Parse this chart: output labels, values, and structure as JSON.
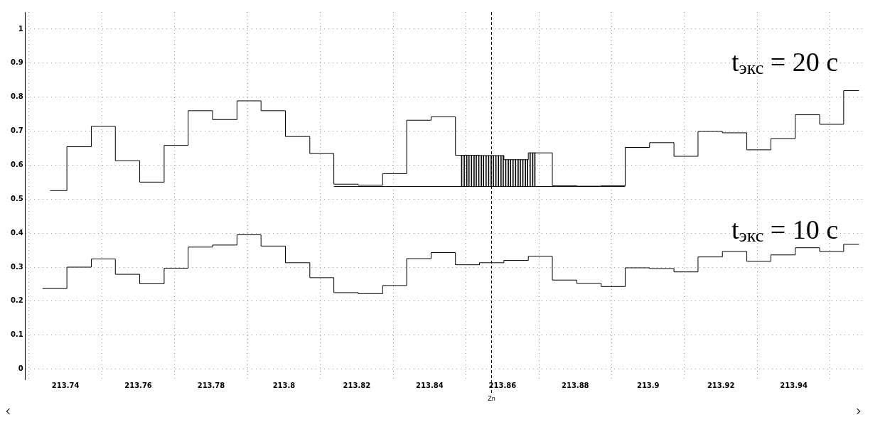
{
  "chart_data": {
    "type": "step",
    "xlim": [
      213.729,
      213.959
    ],
    "ylim": [
      -0.03,
      1.05
    ],
    "xticks": [
      213.74,
      213.76,
      213.78,
      213.8,
      213.82,
      213.84,
      213.86,
      213.88,
      213.9,
      213.92,
      213.94
    ],
    "yticks": [
      0,
      0.1,
      0.2,
      0.3,
      0.4,
      0.5,
      0.6,
      0.7,
      0.8,
      0.9,
      1
    ],
    "grid": true,
    "legend": false,
    "marker": "none",
    "series": [
      {
        "color": "#000000",
        "x": [
          213.7358,
          213.7404,
          213.7471,
          213.7537,
          213.7604,
          213.7671,
          213.7737,
          213.7804,
          213.7871,
          213.7937,
          213.8004,
          213.8071,
          213.8137,
          213.8204,
          213.8271,
          213.8337,
          213.8404,
          213.8471,
          213.8537,
          213.8604,
          213.8671,
          213.8737,
          213.8804,
          213.8871,
          213.8937,
          213.9004,
          213.9071,
          213.9137,
          213.9204,
          213.9271,
          213.9337,
          213.9404,
          213.9471,
          213.9537,
          213.9579
        ],
        "values": [
          0.525,
          0.654,
          0.714,
          0.613,
          0.55,
          0.658,
          0.76,
          0.734,
          0.789,
          0.76,
          0.684,
          0.634,
          0.544,
          0.541,
          0.575,
          0.732,
          0.742,
          0.629,
          0.628,
          0.616,
          0.636,
          0.539,
          0.538,
          0.539,
          0.652,
          0.666,
          0.626,
          0.699,
          0.695,
          0.645,
          0.678,
          0.748,
          0.72,
          0.819,
          0.819
        ]
      },
      {
        "color": "#000000",
        "x": [
          213.7337,
          213.7404,
          213.7471,
          213.7537,
          213.7604,
          213.7671,
          213.7737,
          213.7804,
          213.7871,
          213.7937,
          213.8004,
          213.8071,
          213.8137,
          213.8204,
          213.8271,
          213.8337,
          213.8404,
          213.8471,
          213.8537,
          213.8604,
          213.8671,
          213.8737,
          213.8804,
          213.8871,
          213.8937,
          213.9004,
          213.9071,
          213.9137,
          213.9204,
          213.9271,
          213.9337,
          213.9404,
          213.9471,
          213.9537,
          213.9579
        ],
        "values": [
          0.237,
          0.3,
          0.324,
          0.279,
          0.251,
          0.297,
          0.359,
          0.365,
          0.395,
          0.362,
          0.313,
          0.269,
          0.225,
          0.222,
          0.246,
          0.325,
          0.343,
          0.307,
          0.313,
          0.32,
          0.332,
          0.262,
          0.252,
          0.243,
          0.298,
          0.296,
          0.286,
          0.33,
          0.346,
          0.317,
          0.336,
          0.357,
          0.346,
          0.367,
          0.367
        ]
      },
      {
        "type": "line",
        "color": "#000000",
        "x": [
          213.8137,
          213.8937
        ],
        "values": [
          0.537,
          0.537
        ]
      },
      {
        "type": "bar",
        "color": "#000000",
        "x": [
          213.8488,
          213.8495,
          213.8502,
          213.8508,
          213.8515,
          213.8522,
          213.8528,
          213.8535,
          213.8542,
          213.8548,
          213.8555,
          213.8562,
          213.8569,
          213.8575,
          213.8582,
          213.8589,
          213.8596,
          213.8602,
          213.8609,
          213.8616,
          213.8622,
          213.8629,
          213.8636,
          213.8643,
          213.8649,
          213.8656,
          213.8663,
          213.8669,
          213.8676,
          213.8683,
          213.8689
        ],
        "base": [
          0.537,
          0.537,
          0.537,
          0.537,
          0.537,
          0.537,
          0.537,
          0.537,
          0.537,
          0.537,
          0.537,
          0.537,
          0.537,
          0.537,
          0.537,
          0.537,
          0.537,
          0.537,
          0.537,
          0.537,
          0.537,
          0.537,
          0.537,
          0.537,
          0.537,
          0.537,
          0.537,
          0.537,
          0.537,
          0.537,
          0.537
        ],
        "values": [
          0.092,
          0.092,
          0.092,
          0.092,
          0.092,
          0.092,
          0.092,
          0.092,
          0.091,
          0.091,
          0.091,
          0.091,
          0.091,
          0.091,
          0.091,
          0.091,
          0.091,
          0.091,
          0.079,
          0.079,
          0.079,
          0.079,
          0.079,
          0.079,
          0.079,
          0.079,
          0.079,
          0.079,
          0.099,
          0.099,
          0.099
        ]
      }
    ],
    "ref_lines": [
      {
        "axis": "x",
        "value": 213.857,
        "label": "Zn",
        "line_style": "dashed"
      }
    ],
    "annotations": [
      "t$_{экс}$ = 20 с",
      "t$_{экс}$ = 10 с"
    ]
  }
}
